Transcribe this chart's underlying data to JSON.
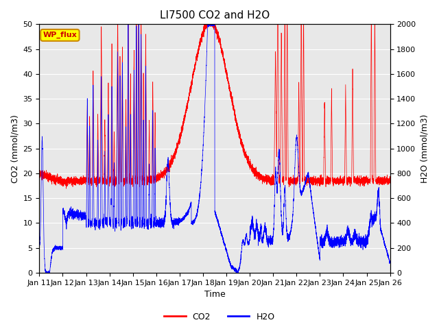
{
  "title": "LI7500 CO2 and H2O",
  "xlabel": "Time",
  "ylabel_left": "CO2 (mmol/m3)",
  "ylabel_right": "H2O (mmol/m3)",
  "ylim_left": [
    0,
    50
  ],
  "ylim_right": [
    0,
    2000
  ],
  "co2_color": "#ff0000",
  "h2o_color": "#0000ff",
  "plot_bg_color": "#e8e8e8",
  "annotation_text": "WP_flux",
  "annotation_bg": "#ffff00",
  "annotation_border": "#cc8800",
  "title_fontsize": 11,
  "label_fontsize": 9,
  "tick_fontsize": 8,
  "legend_fontsize": 9,
  "xtick_labels": [
    "Jan 11",
    "Jan 12",
    "Jan 13",
    "Jan 14",
    "Jan 15",
    "Jan 16",
    "Jan 17",
    "Jan 18",
    "Jan 19",
    "Jan 20",
    "Jan 21",
    "Jan 22",
    "Jan 23",
    "Jan 24",
    "Jan 25",
    "Jan 26"
  ],
  "yticks_left": [
    0,
    5,
    10,
    15,
    20,
    25,
    30,
    35,
    40,
    45,
    50
  ],
  "yticks_right": [
    0,
    200,
    400,
    600,
    800,
    1000,
    1200,
    1400,
    1600,
    1800,
    2000
  ]
}
